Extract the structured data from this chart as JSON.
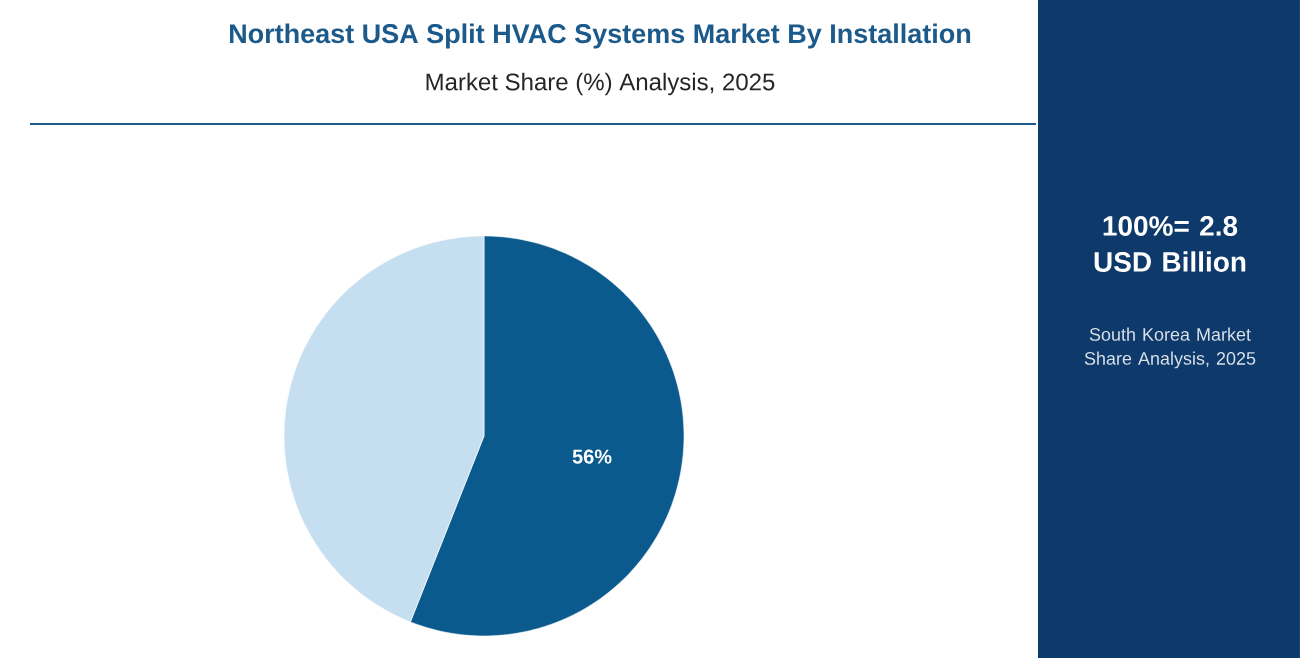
{
  "chart_data": {
    "type": "pie",
    "title": "Northeast USA Split HVAC Systems Market By Installation",
    "subtitle": "Market Share (%) Analysis, 2025",
    "categories": [
      null,
      null
    ],
    "values": [
      56,
      44
    ],
    "colors": [
      "#0b5a8e",
      "#c5dff0"
    ],
    "value_labels": [
      "56%",
      null
    ],
    "annotations": [
      "100%= 2.8 USD Billion",
      "South Korea Market Share Analysis, 2025"
    ]
  }
}
